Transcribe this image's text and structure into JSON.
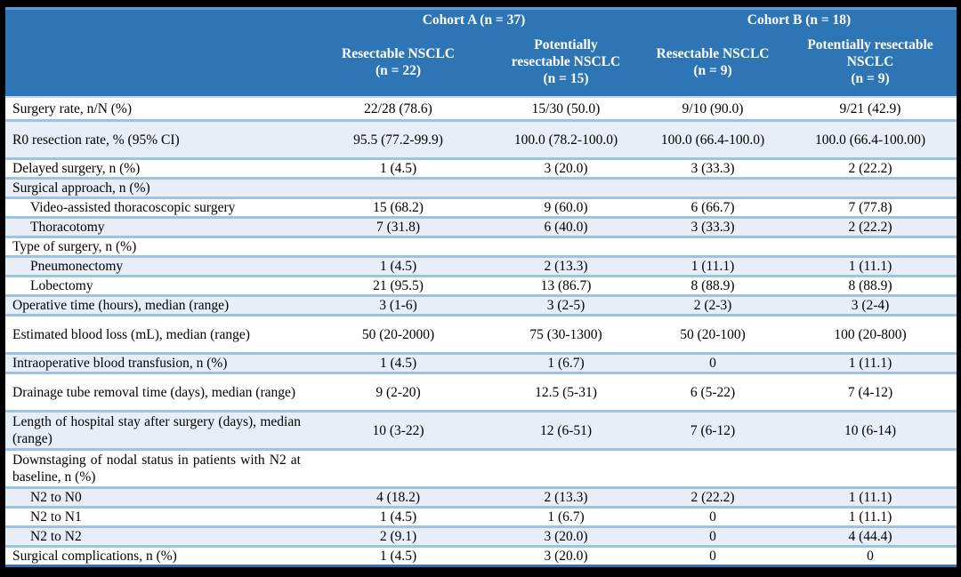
{
  "colors": {
    "header_bg": "#2E75B5",
    "header_text": "#FFFFFF",
    "band_fill": "#E7EEF8",
    "row_border": "#9CC2E5",
    "top_border": "#5B9BD5",
    "bottom_border": "#2E74B5",
    "frame": "#000000"
  },
  "table": {
    "groups": [
      {
        "label": "Cohort A (n = 37)"
      },
      {
        "label": "Cohort B (n = 18)"
      }
    ],
    "columns": [
      {
        "label": "Resectable NSCLC\n(n = 22)"
      },
      {
        "label": "Potentially\nresectable NSCLC\n(n = 15)"
      },
      {
        "label": "Resectable NSCLC\n(n = 9)"
      },
      {
        "label": "Potentially resectable\nNSCLC\n(n = 9)"
      }
    ],
    "rows": [
      {
        "label": "Surgery rate, n/N (%)",
        "indent": false,
        "values": [
          "22/28 (78.6)",
          "15/30 (50.0)",
          "9/10 (90.0)",
          "9/21 (42.9)"
        ]
      },
      {
        "label": "R0 resection rate, % (95% CI)",
        "indent": false,
        "values": [
          "95.5 (77.2-99.9)",
          "100.0 (78.2-100.0)",
          "100.0 (66.4-100.0)",
          "100.0 (66.4-100.00)"
        ]
      },
      {
        "label": "Delayed surgery, n (%)",
        "indent": false,
        "values": [
          "1 (4.5)",
          "3 (20.0)",
          "3 (33.3)",
          "2 (22.2)"
        ]
      },
      {
        "label": "Surgical approach, n (%)",
        "indent": false,
        "values": [
          "",
          "",
          "",
          ""
        ]
      },
      {
        "label": "Video-assisted thoracoscopic surgery",
        "indent": true,
        "values": [
          "15 (68.2)",
          "9 (60.0)",
          "6 (66.7)",
          "7 (77.8)"
        ]
      },
      {
        "label": "Thoracotomy",
        "indent": true,
        "values": [
          "7 (31.8)",
          "6 (40.0)",
          "3 (33.3)",
          "2 (22.2)"
        ]
      },
      {
        "label": "Type of surgery, n (%)",
        "indent": false,
        "values": [
          "",
          "",
          "",
          ""
        ]
      },
      {
        "label": "Pneumonectomy",
        "indent": true,
        "values": [
          "1 (4.5)",
          "2 (13.3)",
          "1 (11.1)",
          "1 (11.1)"
        ]
      },
      {
        "label": "Lobectomy",
        "indent": true,
        "values": [
          "21 (95.5)",
          "13 (86.7)",
          "8 (88.9)",
          "8 (88.9)"
        ]
      },
      {
        "label": "Operative time (hours), median (range)",
        "indent": false,
        "values": [
          "3 (1-6)",
          "3 (2-5)",
          "2 (2-3)",
          "3 (2-4)"
        ]
      },
      {
        "label": "Estimated blood loss (mL), median (range)",
        "indent": false,
        "values": [
          "50 (20-2000)",
          "75 (30-1300)",
          "50 (20-100)",
          "100 (20-800)"
        ]
      },
      {
        "label": "Intraoperative blood transfusion, n (%)",
        "indent": false,
        "values": [
          "1 (4.5)",
          "1 (6.7)",
          "0",
          "1 (11.1)"
        ]
      },
      {
        "label": "Drainage tube removal time (days), median (range)",
        "indent": false,
        "values": [
          "9 (2-20)",
          "12.5 (5-31)",
          "6 (5-22)",
          "7 (4-12)"
        ]
      },
      {
        "label": "Length of hospital stay after surgery (days), median (range)",
        "indent": false,
        "values": [
          "10 (3-22)",
          "12 (6-51)",
          "7 (6-12)",
          "10 (6-14)"
        ]
      },
      {
        "label": "Downstaging of nodal status in patients with N2 at baseline, n (%)",
        "indent": false,
        "values": [
          "",
          "",
          "",
          ""
        ]
      },
      {
        "label": "N2 to N0",
        "indent": true,
        "values": [
          "4 (18.2)",
          "2 (13.3)",
          "2 (22.2)",
          "1 (11.1)"
        ]
      },
      {
        "label": "N2 to N1",
        "indent": true,
        "values": [
          "1 (4.5)",
          "1 (6.7)",
          "0",
          "1 (11.1)"
        ]
      },
      {
        "label": "N2 to N2",
        "indent": true,
        "values": [
          "2 (9.1)",
          "3 (20.0)",
          "0",
          "4 (44.4)"
        ]
      },
      {
        "label": "Surgical complications, n (%)",
        "indent": false,
        "values": [
          "1 (4.5)",
          "3 (20.0)",
          "0",
          "0"
        ]
      }
    ]
  }
}
